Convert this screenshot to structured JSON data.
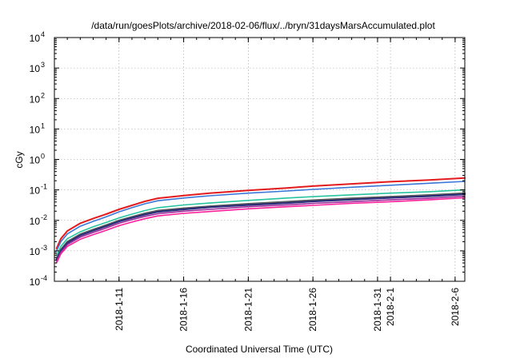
{
  "chart_data": {
    "type": "line",
    "title": "/data/run/goesPlots/archive/2018-02-06/flux/../bryn/31daysMarsAccumulated.plot",
    "xlabel": "Coordinated Universal Time (UTC)",
    "ylabel": "cGy",
    "yscale": "log",
    "ylim": [
      0.0001,
      10000
    ],
    "xlim": [
      "2018-01-06",
      "2018-02-06T18:00"
    ],
    "grid": true,
    "y_ticks": [
      {
        "base": "10",
        "exp": "-4",
        "value": 0.0001
      },
      {
        "base": "10",
        "exp": "-3",
        "value": 0.001
      },
      {
        "base": "10",
        "exp": "-2",
        "value": 0.01
      },
      {
        "base": "10",
        "exp": "-1",
        "value": 0.1
      },
      {
        "base": "10",
        "exp": "0",
        "value": 1
      },
      {
        "base": "10",
        "exp": "1",
        "value": 10
      },
      {
        "base": "10",
        "exp": "2",
        "value": 100
      },
      {
        "base": "10",
        "exp": "3",
        "value": 1000
      },
      {
        "base": "10",
        "exp": "4",
        "value": 10000
      }
    ],
    "x_ticks": [
      {
        "label": "2018-1-11",
        "date": "2018-01-11"
      },
      {
        "label": "2018-1-16",
        "date": "2018-01-16"
      },
      {
        "label": "2018-1-21",
        "date": "2018-01-21"
      },
      {
        "label": "2018-1-26",
        "date": "2018-01-26"
      },
      {
        "label": "2018-1-31",
        "date": "2018-01-31"
      },
      {
        "label": "2018-2-1",
        "date": "2018-02-01"
      },
      {
        "label": "2018-2-6",
        "date": "2018-02-06"
      }
    ],
    "x": [
      "2018-01-06T04:00",
      "2018-01-06T12:00",
      "2018-01-07",
      "2018-01-08",
      "2018-01-09",
      "2018-01-10",
      "2018-01-11",
      "2018-01-12",
      "2018-01-13",
      "2018-01-14",
      "2018-01-16",
      "2018-01-18",
      "2018-01-21",
      "2018-01-24",
      "2018-01-26",
      "2018-01-29",
      "2018-02-01",
      "2018-02-04",
      "2018-02-06T18:00"
    ],
    "series": [
      {
        "color": "#e41a1c",
        "width": 2.0,
        "values": [
          0.0012,
          0.0025,
          0.0045,
          0.008,
          0.0115,
          0.016,
          0.023,
          0.031,
          0.042,
          0.053,
          0.065,
          0.078,
          0.096,
          0.116,
          0.133,
          0.158,
          0.185,
          0.212,
          0.245
        ]
      },
      {
        "color": "#3a78d8",
        "width": 1.6,
        "values": [
          0.001,
          0.002,
          0.0036,
          0.0064,
          0.0093,
          0.013,
          0.019,
          0.026,
          0.035,
          0.044,
          0.054,
          0.064,
          0.078,
          0.092,
          0.104,
          0.122,
          0.142,
          0.165,
          0.19
        ]
      },
      {
        "color": "#27c4a0",
        "width": 1.6,
        "values": [
          0.0007,
          0.0014,
          0.0025,
          0.0042,
          0.0062,
          0.0085,
          0.012,
          0.016,
          0.021,
          0.026,
          0.032,
          0.037,
          0.045,
          0.054,
          0.06,
          0.069,
          0.078,
          0.087,
          0.1
        ]
      },
      {
        "color": "#5a5a5a",
        "width": 2.0,
        "values": [
          0.00055,
          0.0011,
          0.002,
          0.0035,
          0.005,
          0.007,
          0.01,
          0.013,
          0.017,
          0.021,
          0.025,
          0.029,
          0.035,
          0.041,
          0.046,
          0.053,
          0.06,
          0.068,
          0.078
        ]
      },
      {
        "color": "#2b2d7a",
        "width": 2.2,
        "values": [
          0.0005,
          0.001,
          0.0018,
          0.0032,
          0.0046,
          0.0064,
          0.0092,
          0.012,
          0.0155,
          0.019,
          0.023,
          0.027,
          0.032,
          0.037,
          0.042,
          0.048,
          0.055,
          0.062,
          0.072
        ]
      },
      {
        "color": "#9b2a9b",
        "width": 1.6,
        "values": [
          0.00045,
          0.0009,
          0.0016,
          0.0028,
          0.004,
          0.0056,
          0.008,
          0.0105,
          0.0135,
          0.0165,
          0.02,
          0.023,
          0.028,
          0.032,
          0.036,
          0.041,
          0.047,
          0.053,
          0.062
        ]
      },
      {
        "color": "#ff1f9a",
        "width": 1.6,
        "values": [
          0.0004,
          0.0008,
          0.0014,
          0.0024,
          0.0034,
          0.0047,
          0.0067,
          0.0088,
          0.0113,
          0.014,
          0.017,
          0.0195,
          0.024,
          0.028,
          0.031,
          0.036,
          0.041,
          0.047,
          0.055
        ]
      }
    ]
  }
}
